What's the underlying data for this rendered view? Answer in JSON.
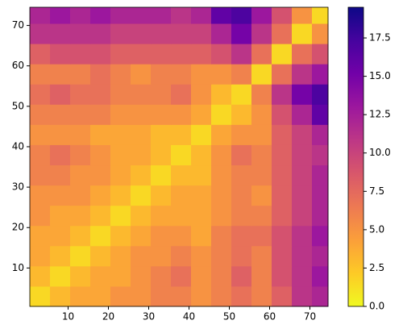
{
  "chart_data": {
    "type": "heatmap",
    "x_edges": [
      0.5,
      5.5,
      10.5,
      15.5,
      20.5,
      25.5,
      30.5,
      35.5,
      40.5,
      45.5,
      50.5,
      55.5,
      60.5,
      65.5,
      70.5,
      74.5
    ],
    "y_edges": [
      0.5,
      5.5,
      10.5,
      15.5,
      20.5,
      25.5,
      30.5,
      35.5,
      40.5,
      45.5,
      50.5,
      55.5,
      60.5,
      65.5,
      70.5,
      74.5
    ],
    "values": [
      [
        1.5,
        3,
        4,
        4,
        5,
        5,
        6,
        6,
        5,
        6,
        7,
        6,
        8,
        11,
        12
      ],
      [
        3,
        1.5,
        3,
        4,
        4,
        5,
        6,
        7,
        5,
        6,
        8,
        6,
        9,
        11,
        13
      ],
      [
        4,
        3,
        1.5,
        3,
        4,
        5,
        5,
        6,
        5,
        6,
        7,
        6,
        9,
        11,
        12
      ],
      [
        4,
        4,
        3,
        1.5,
        3,
        4,
        5,
        5,
        4,
        6,
        7,
        7,
        9,
        11,
        13
      ],
      [
        5,
        4,
        4,
        3,
        1.5,
        3,
        4,
        4,
        4,
        5,
        6,
        6,
        8,
        10,
        12
      ],
      [
        5,
        5,
        5,
        4,
        3,
        1.5,
        3,
        4,
        4,
        5,
        6,
        5,
        8,
        10,
        12
      ],
      [
        6,
        6,
        5,
        5,
        4,
        3,
        1.5,
        3,
        3,
        5,
        6,
        6,
        8,
        10,
        12
      ],
      [
        6,
        7,
        6,
        5,
        4,
        4,
        3,
        1.5,
        3,
        5,
        7,
        6,
        8,
        10,
        11
      ],
      [
        5,
        5,
        5,
        4,
        4,
        4,
        3,
        3,
        1.5,
        4,
        5,
        5,
        8,
        10,
        12
      ],
      [
        6,
        6,
        6,
        6,
        5,
        5,
        5,
        5,
        4,
        1.5,
        3,
        5,
        9,
        12,
        16
      ],
      [
        7,
        8,
        7,
        7,
        6,
        6,
        6,
        7,
        5,
        3,
        1.5,
        6,
        11,
        15,
        17
      ],
      [
        6,
        6,
        6,
        7,
        6,
        5,
        6,
        6,
        5,
        5,
        6,
        1.5,
        7,
        11,
        13
      ],
      [
        8,
        9,
        9,
        9,
        8,
        8,
        8,
        8,
        8,
        9,
        11,
        7,
        1.5,
        7,
        9
      ],
      [
        11,
        11,
        11,
        11,
        10,
        10,
        10,
        10,
        10,
        12,
        15,
        11,
        7,
        1.5,
        5
      ],
      [
        12,
        13,
        12,
        13,
        12,
        12,
        12,
        11,
        12,
        16,
        17,
        13,
        9,
        5,
        1.5
      ]
    ],
    "xlim": [
      0.5,
      74.5
    ],
    "ylim": [
      0.5,
      74.5
    ],
    "xticks": [
      10,
      20,
      30,
      40,
      50,
      60,
      70
    ],
    "yticks": [
      10,
      20,
      30,
      40,
      50,
      60,
      70
    ],
    "clim": [
      0,
      19.5
    ],
    "cticks": [
      {
        "value": 0,
        "label": "0.0"
      },
      {
        "value": 2.5,
        "label": "2.5"
      },
      {
        "value": 5,
        "label": "5.0"
      },
      {
        "value": 7.5,
        "label": "7.5"
      },
      {
        "value": 10,
        "label": "10.0"
      },
      {
        "value": 12.5,
        "label": "12.5"
      },
      {
        "value": 15,
        "label": "15.0"
      },
      {
        "value": 17.5,
        "label": "17.5"
      }
    ],
    "colormap": [
      "#f0f921",
      "#fdca26",
      "#fb9f3a",
      "#ed7953",
      "#d8576b",
      "#bd3786",
      "#9c179e",
      "#7201a8",
      "#46039f",
      "#0d0887"
    ]
  }
}
